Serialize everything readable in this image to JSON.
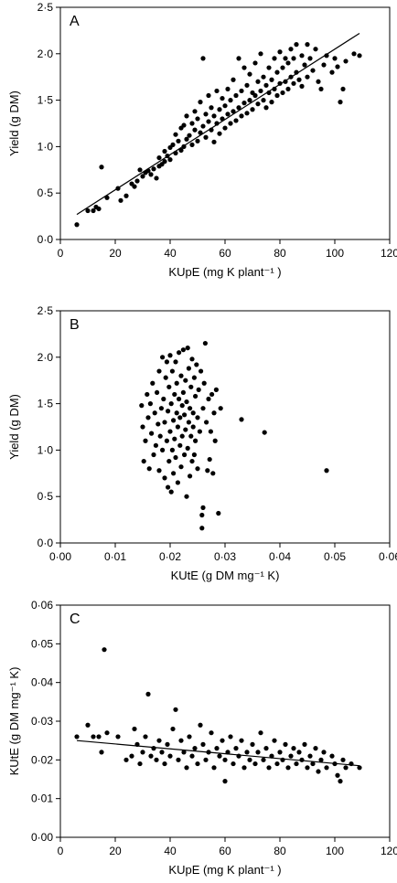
{
  "chart_data": [
    {
      "type": "scatter",
      "panel_label": "A",
      "xlabel": "KUpE (mg K plant⁻¹ )",
      "ylabel": "Yield (g DM)",
      "xlim": [
        0,
        120
      ],
      "ylim": [
        0,
        2.5
      ],
      "x_ticks": [
        0,
        20,
        40,
        60,
        80,
        100,
        120
      ],
      "y_ticks": [
        0,
        0.5,
        1.0,
        1.5,
        2.0,
        2.5
      ],
      "x_tick_labels": [
        "0",
        "20",
        "40",
        "60",
        "80",
        "100",
        "120"
      ],
      "y_tick_labels": [
        "0·0",
        "0·5",
        "1·0",
        "1·5",
        "2·0",
        "2·5"
      ],
      "trend_line": {
        "x": [
          6,
          109
        ],
        "y": [
          0.27,
          2.22
        ]
      },
      "points": [
        [
          6,
          0.16
        ],
        [
          10,
          0.31
        ],
        [
          12,
          0.31
        ],
        [
          13,
          0.35
        ],
        [
          14,
          0.33
        ],
        [
          15,
          0.78
        ],
        [
          17,
          0.45
        ],
        [
          21,
          0.55
        ],
        [
          22,
          0.42
        ],
        [
          24,
          0.47
        ],
        [
          26,
          0.6
        ],
        [
          27,
          0.57
        ],
        [
          28,
          0.63
        ],
        [
          29,
          0.75
        ],
        [
          30,
          0.68
        ],
        [
          31,
          0.72
        ],
        [
          32,
          0.74
        ],
        [
          33,
          0.7
        ],
        [
          34,
          0.76
        ],
        [
          35,
          0.66
        ],
        [
          36,
          0.79
        ],
        [
          36,
          0.88
        ],
        [
          37,
          0.81
        ],
        [
          38,
          0.84
        ],
        [
          38,
          0.95
        ],
        [
          39,
          0.9
        ],
        [
          40,
          0.86
        ],
        [
          40,
          0.99
        ],
        [
          41,
          1.02
        ],
        [
          42,
          0.93
        ],
        [
          42,
          1.13
        ],
        [
          43,
          1.06
        ],
        [
          44,
          0.96
        ],
        [
          44,
          1.2
        ],
        [
          45,
          1.0
        ],
        [
          45,
          1.23
        ],
        [
          46,
          1.08
        ],
        [
          46,
          1.33
        ],
        [
          47,
          1.12
        ],
        [
          48,
          1.02
        ],
        [
          48,
          1.25
        ],
        [
          49,
          1.18
        ],
        [
          49,
          1.38
        ],
        [
          50,
          1.06
        ],
        [
          50,
          1.3
        ],
        [
          51,
          1.15
        ],
        [
          51,
          1.48
        ],
        [
          52,
          1.22
        ],
        [
          52,
          1.95
        ],
        [
          53,
          1.1
        ],
        [
          53,
          1.35
        ],
        [
          54,
          1.27
        ],
        [
          54,
          1.55
        ],
        [
          55,
          1.18
        ],
        [
          55,
          1.42
        ],
        [
          56,
          1.05
        ],
        [
          56,
          1.33
        ],
        [
          57,
          1.25
        ],
        [
          57,
          1.6
        ],
        [
          58,
          1.14
        ],
        [
          58,
          1.4
        ],
        [
          59,
          1.3
        ],
        [
          59,
          1.52
        ],
        [
          60,
          1.2
        ],
        [
          60,
          1.44
        ],
        [
          61,
          1.35
        ],
        [
          61,
          1.62
        ],
        [
          62,
          1.25
        ],
        [
          62,
          1.5
        ],
        [
          63,
          1.38
        ],
        [
          63,
          1.72
        ],
        [
          64,
          1.28
        ],
        [
          64,
          1.55
        ],
        [
          65,
          1.42
        ],
        [
          65,
          1.95
        ],
        [
          66,
          1.33
        ],
        [
          66,
          1.6
        ],
        [
          67,
          1.47
        ],
        [
          67,
          1.85
        ],
        [
          68,
          1.36
        ],
        [
          68,
          1.66
        ],
        [
          69,
          1.5
        ],
        [
          69,
          1.78
        ],
        [
          70,
          1.4
        ],
        [
          70,
          1.58
        ],
        [
          71,
          1.55
        ],
        [
          71,
          1.9
        ],
        [
          72,
          1.46
        ],
        [
          72,
          1.7
        ],
        [
          73,
          1.6
        ],
        [
          73,
          2.0
        ],
        [
          74,
          1.5
        ],
        [
          74,
          1.75
        ],
        [
          75,
          1.42
        ],
        [
          75,
          1.66
        ],
        [
          76,
          1.58
        ],
        [
          76,
          1.85
        ],
        [
          77,
          1.48
        ],
        [
          77,
          1.72
        ],
        [
          78,
          1.62
        ],
        [
          78,
          1.95
        ],
        [
          79,
          1.55
        ],
        [
          79,
          1.8
        ],
        [
          80,
          1.68
        ],
        [
          80,
          2.02
        ],
        [
          81,
          1.58
        ],
        [
          81,
          1.85
        ],
        [
          82,
          1.7
        ],
        [
          82,
          1.95
        ],
        [
          83,
          1.62
        ],
        [
          83,
          1.9
        ],
        [
          84,
          1.75
        ],
        [
          84,
          2.05
        ],
        [
          85,
          1.68
        ],
        [
          85,
          1.95
        ],
        [
          86,
          1.8
        ],
        [
          86,
          2.1
        ],
        [
          87,
          1.72
        ],
        [
          88,
          1.65
        ],
        [
          88,
          1.98
        ],
        [
          89,
          1.88
        ],
        [
          90,
          1.75
        ],
        [
          90,
          2.1
        ],
        [
          91,
          1.95
        ],
        [
          92,
          1.82
        ],
        [
          93,
          2.05
        ],
        [
          94,
          1.7
        ],
        [
          95,
          1.62
        ],
        [
          96,
          1.88
        ],
        [
          97,
          1.98
        ],
        [
          99,
          1.8
        ],
        [
          100,
          1.95
        ],
        [
          101,
          1.86
        ],
        [
          102,
          1.48
        ],
        [
          103,
          1.62
        ],
        [
          104,
          1.92
        ],
        [
          107,
          2.0
        ],
        [
          109,
          1.98
        ]
      ]
    },
    {
      "type": "scatter",
      "panel_label": "B",
      "xlabel": "KUtE (g DM mg⁻¹ K)",
      "ylabel": "Yield (g DM)",
      "xlim": [
        0,
        0.06
      ],
      "ylim": [
        0,
        2.5
      ],
      "x_ticks": [
        0,
        0.01,
        0.02,
        0.03,
        0.04,
        0.05,
        0.06
      ],
      "y_ticks": [
        0,
        0.5,
        1.0,
        1.5,
        2.0,
        2.5
      ],
      "x_tick_labels": [
        "0·00",
        "0·01",
        "0·02",
        "0·03",
        "0·04",
        "0·05",
        "0·06"
      ],
      "y_tick_labels": [
        "0·0",
        "0·5",
        "1·0",
        "1·5",
        "2·0",
        "2·5"
      ],
      "points": [
        [
          0.0148,
          1.48
        ],
        [
          0.015,
          1.25
        ],
        [
          0.0152,
          0.88
        ],
        [
          0.0155,
          1.1
        ],
        [
          0.0158,
          1.6
        ],
        [
          0.016,
          1.35
        ],
        [
          0.0162,
          0.8
        ],
        [
          0.0164,
          1.5
        ],
        [
          0.0166,
          1.18
        ],
        [
          0.0168,
          1.72
        ],
        [
          0.017,
          0.95
        ],
        [
          0.0172,
          1.4
        ],
        [
          0.0174,
          1.05
        ],
        [
          0.0176,
          1.62
        ],
        [
          0.0178,
          1.28
        ],
        [
          0.018,
          0.78
        ],
        [
          0.018,
          1.85
        ],
        [
          0.0182,
          1.15
        ],
        [
          0.0184,
          1.45
        ],
        [
          0.0186,
          1.0
        ],
        [
          0.0186,
          2.0
        ],
        [
          0.0188,
          1.55
        ],
        [
          0.019,
          0.7
        ],
        [
          0.019,
          1.3
        ],
        [
          0.0192,
          1.78
        ],
        [
          0.0194,
          1.1
        ],
        [
          0.0194,
          1.95
        ],
        [
          0.0196,
          0.6
        ],
        [
          0.0196,
          1.42
        ],
        [
          0.0198,
          0.88
        ],
        [
          0.0198,
          1.68
        ],
        [
          0.02,
          1.2
        ],
        [
          0.02,
          2.02
        ],
        [
          0.0202,
          0.55
        ],
        [
          0.0202,
          1.5
        ],
        [
          0.0204,
          1.0
        ],
        [
          0.0204,
          1.85
        ],
        [
          0.0206,
          1.32
        ],
        [
          0.0206,
          0.75
        ],
        [
          0.0208,
          1.6
        ],
        [
          0.0208,
          1.12
        ],
        [
          0.021,
          1.95
        ],
        [
          0.021,
          0.92
        ],
        [
          0.0212,
          1.4
        ],
        [
          0.0212,
          1.72
        ],
        [
          0.0214,
          1.25
        ],
        [
          0.0214,
          0.65
        ],
        [
          0.0216,
          1.55
        ],
        [
          0.0216,
          2.05
        ],
        [
          0.0218,
          1.05
        ],
        [
          0.0218,
          1.35
        ],
        [
          0.022,
          1.8
        ],
        [
          0.022,
          0.82
        ],
        [
          0.0222,
          1.48
        ],
        [
          0.0222,
          1.15
        ],
        [
          0.0224,
          2.08
        ],
        [
          0.0224,
          1.62
        ],
        [
          0.0226,
          0.95
        ],
        [
          0.0226,
          1.38
        ],
        [
          0.0228,
          1.75
        ],
        [
          0.0228,
          1.22
        ],
        [
          0.023,
          0.5
        ],
        [
          0.023,
          1.52
        ],
        [
          0.0232,
          2.1
        ],
        [
          0.0232,
          1.02
        ],
        [
          0.0234,
          1.3
        ],
        [
          0.0234,
          1.88
        ],
        [
          0.0236,
          0.72
        ],
        [
          0.0236,
          1.45
        ],
        [
          0.0238,
          1.15
        ],
        [
          0.0238,
          1.68
        ],
        [
          0.024,
          1.98
        ],
        [
          0.024,
          0.88
        ],
        [
          0.0242,
          1.4
        ],
        [
          0.0242,
          1.25
        ],
        [
          0.0244,
          1.78
        ],
        [
          0.0244,
          0.95
        ],
        [
          0.0246,
          1.58
        ],
        [
          0.0246,
          1.1
        ],
        [
          0.0248,
          1.92
        ],
        [
          0.025,
          1.35
        ],
        [
          0.025,
          0.8
        ],
        [
          0.0252,
          1.65
        ],
        [
          0.0254,
          1.2
        ],
        [
          0.0256,
          1.85
        ],
        [
          0.0258,
          0.3
        ],
        [
          0.0258,
          0.16
        ],
        [
          0.026,
          1.45
        ],
        [
          0.026,
          0.38
        ],
        [
          0.0262,
          1.72
        ],
        [
          0.0264,
          2.15
        ],
        [
          0.0266,
          1.3
        ],
        [
          0.0268,
          0.78
        ],
        [
          0.027,
          1.55
        ],
        [
          0.0272,
          0.9
        ],
        [
          0.0274,
          1.2
        ],
        [
          0.0276,
          1.6
        ],
        [
          0.0278,
          0.75
        ],
        [
          0.028,
          1.4
        ],
        [
          0.0282,
          1.1
        ],
        [
          0.0284,
          1.65
        ],
        [
          0.0288,
          0.32
        ],
        [
          0.0292,
          1.45
        ],
        [
          0.033,
          1.33
        ],
        [
          0.0372,
          1.19
        ],
        [
          0.0485,
          0.78
        ]
      ]
    },
    {
      "type": "scatter",
      "panel_label": "C",
      "xlabel": "KUpE (mg K plant⁻¹ )",
      "ylabel": "KUtE (g DM mg⁻¹ K)",
      "xlim": [
        0,
        120
      ],
      "ylim": [
        0,
        0.06
      ],
      "x_ticks": [
        0,
        20,
        40,
        60,
        80,
        100,
        120
      ],
      "y_ticks": [
        0,
        0.01,
        0.02,
        0.03,
        0.04,
        0.05,
        0.06
      ],
      "x_tick_labels": [
        "0",
        "20",
        "40",
        "60",
        "80",
        "100",
        "120"
      ],
      "y_tick_labels": [
        "0·00",
        "0·01",
        "0·02",
        "0·03",
        "0·04",
        "0·05",
        "0·06"
      ],
      "trend_line": {
        "x": [
          6,
          109
        ],
        "y": [
          0.025,
          0.0185
        ]
      },
      "points": [
        [
          6,
          0.026
        ],
        [
          10,
          0.029
        ],
        [
          12,
          0.026
        ],
        [
          14,
          0.026
        ],
        [
          15,
          0.022
        ],
        [
          16,
          0.0485
        ],
        [
          17,
          0.027
        ],
        [
          21,
          0.026
        ],
        [
          24,
          0.02
        ],
        [
          26,
          0.021
        ],
        [
          27,
          0.028
        ],
        [
          28,
          0.024
        ],
        [
          29,
          0.019
        ],
        [
          30,
          0.022
        ],
        [
          31,
          0.026
        ],
        [
          32,
          0.037
        ],
        [
          33,
          0.021
        ],
        [
          34,
          0.023
        ],
        [
          35,
          0.02
        ],
        [
          36,
          0.025
        ],
        [
          37,
          0.022
        ],
        [
          38,
          0.019
        ],
        [
          39,
          0.024
        ],
        [
          40,
          0.021
        ],
        [
          41,
          0.028
        ],
        [
          42,
          0.033
        ],
        [
          43,
          0.02
        ],
        [
          44,
          0.025
        ],
        [
          45,
          0.022
        ],
        [
          46,
          0.018
        ],
        [
          47,
          0.026
        ],
        [
          48,
          0.021
        ],
        [
          49,
          0.023
        ],
        [
          50,
          0.019
        ],
        [
          51,
          0.029
        ],
        [
          52,
          0.024
        ],
        [
          53,
          0.02
        ],
        [
          54,
          0.022
        ],
        [
          55,
          0.027
        ],
        [
          56,
          0.018
        ],
        [
          57,
          0.023
        ],
        [
          58,
          0.021
        ],
        [
          59,
          0.025
        ],
        [
          60,
          0.0145
        ],
        [
          60,
          0.02
        ],
        [
          61,
          0.022
        ],
        [
          62,
          0.026
        ],
        [
          63,
          0.019
        ],
        [
          64,
          0.023
        ],
        [
          65,
          0.021
        ],
        [
          66,
          0.025
        ],
        [
          67,
          0.018
        ],
        [
          68,
          0.022
        ],
        [
          69,
          0.02
        ],
        [
          70,
          0.024
        ],
        [
          71,
          0.019
        ],
        [
          72,
          0.022
        ],
        [
          73,
          0.027
        ],
        [
          74,
          0.02
        ],
        [
          75,
          0.023
        ],
        [
          76,
          0.018
        ],
        [
          77,
          0.021
        ],
        [
          78,
          0.025
        ],
        [
          79,
          0.019
        ],
        [
          80,
          0.022
        ],
        [
          81,
          0.02
        ],
        [
          82,
          0.024
        ],
        [
          83,
          0.018
        ],
        [
          84,
          0.021
        ],
        [
          85,
          0.023
        ],
        [
          86,
          0.019
        ],
        [
          87,
          0.022
        ],
        [
          88,
          0.02
        ],
        [
          89,
          0.024
        ],
        [
          90,
          0.018
        ],
        [
          91,
          0.021
        ],
        [
          92,
          0.019
        ],
        [
          93,
          0.023
        ],
        [
          94,
          0.017
        ],
        [
          95,
          0.02
        ],
        [
          96,
          0.022
        ],
        [
          97,
          0.018
        ],
        [
          99,
          0.021
        ],
        [
          100,
          0.019
        ],
        [
          101,
          0.016
        ],
        [
          102,
          0.0145
        ],
        [
          103,
          0.02
        ],
        [
          104,
          0.018
        ],
        [
          106,
          0.019
        ],
        [
          109,
          0.018
        ]
      ]
    }
  ]
}
